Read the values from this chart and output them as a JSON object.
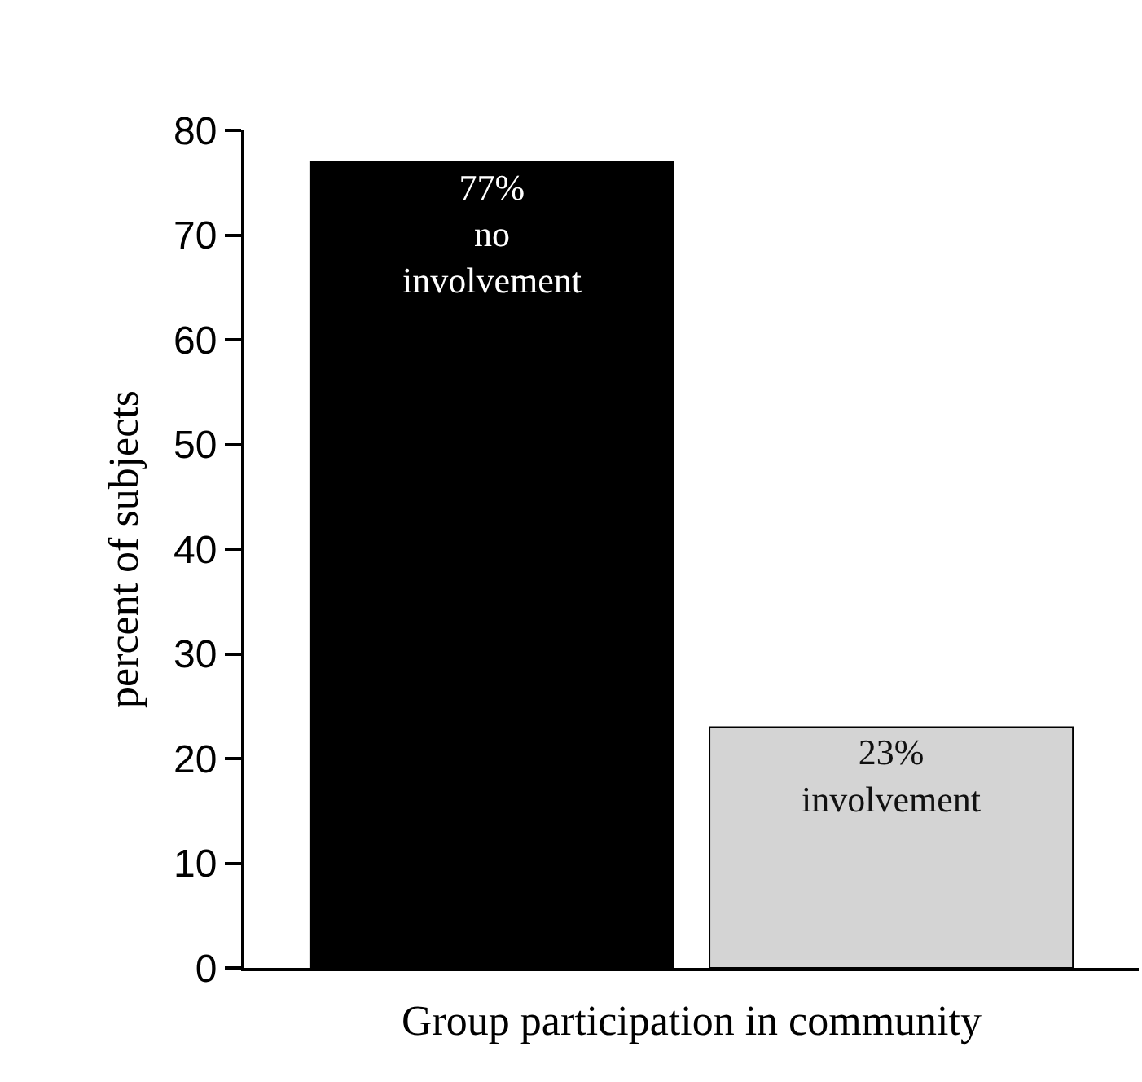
{
  "chart_data": {
    "type": "bar",
    "categories": [
      null,
      null
    ],
    "values": [
      77,
      23
    ],
    "colors": [
      "#000000",
      "#d4d4d4"
    ],
    "value_labels": [
      "77%\nno\ninvolvement",
      "23%\ninvolvement"
    ],
    "xlabel": "Group participation in community",
    "ylabel": "percent of subjects",
    "ylim": [
      0,
      80
    ],
    "yticks": [
      0,
      10,
      20,
      30,
      40,
      50,
      60,
      70,
      80
    ],
    "tick_labels": "y"
  }
}
